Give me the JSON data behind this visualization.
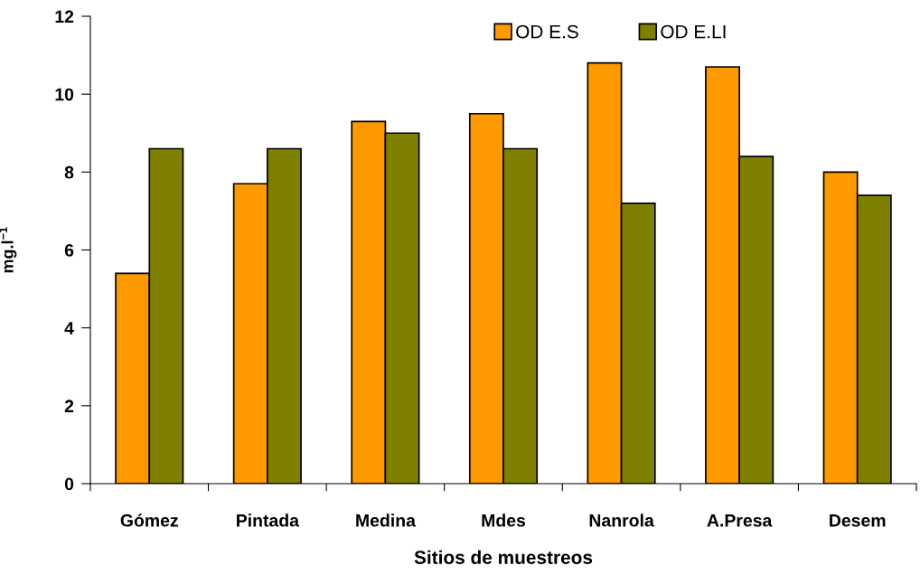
{
  "chart_data": {
    "type": "bar",
    "categories": [
      "Gómez",
      "Pintada",
      "Medina",
      "Mdes",
      "Nanrola",
      "A.Presa",
      "Desem"
    ],
    "series": [
      {
        "name": "OD E.S",
        "color": "#ff9900",
        "values": [
          5.4,
          7.7,
          9.3,
          9.5,
          10.8,
          10.7,
          8.0
        ]
      },
      {
        "name": "OD E.LI",
        "color": "#808000",
        "values": [
          8.6,
          8.6,
          9.0,
          8.6,
          7.2,
          8.4,
          7.4
        ]
      }
    ],
    "xlabel": "Sitios de muestreos",
    "ylabel": "mg.l$^{−1}$",
    "ylim": [
      0,
      12
    ],
    "yticks": [
      0,
      2,
      4,
      6,
      8,
      10,
      12
    ],
    "grid": false,
    "legend": "top"
  }
}
